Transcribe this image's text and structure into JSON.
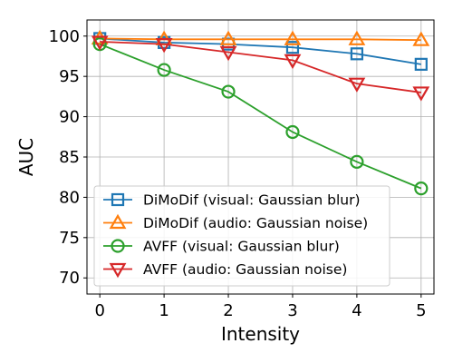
{
  "chart_data": {
    "type": "line",
    "title": "",
    "xlabel": "Intensity",
    "ylabel": "AUC",
    "x": [
      0,
      1,
      2,
      3,
      4,
      5
    ],
    "xlim": [
      -0.2,
      5.2
    ],
    "ylim": [
      68,
      102
    ],
    "xticks": [
      "0",
      "1",
      "2",
      "3",
      "4",
      "5"
    ],
    "yticks": [
      "70",
      "75",
      "80",
      "85",
      "90",
      "95",
      "100"
    ],
    "grid": true,
    "legend_position": "lower-left",
    "series": [
      {
        "name": "DiMoDif (visual: Gaussian blur)",
        "values": [
          99.7,
          99.2,
          99.0,
          98.6,
          97.8,
          96.5
        ],
        "color": "#1f77b4",
        "marker": "square"
      },
      {
        "name": "DiMoDif (audio: Gaussian noise)",
        "values": [
          99.7,
          99.6,
          99.6,
          99.6,
          99.6,
          99.5
        ],
        "color": "#ff7f0e",
        "marker": "triangle-up"
      },
      {
        "name": "AVFF (visual: Gaussian blur)",
        "values": [
          99.0,
          95.8,
          93.1,
          88.1,
          84.4,
          81.1
        ],
        "color": "#2ca02c",
        "marker": "circle"
      },
      {
        "name": "AVFF (audio: Gaussian noise)",
        "values": [
          99.3,
          99.0,
          98.0,
          97.0,
          94.1,
          93.0
        ],
        "color": "#d62728",
        "marker": "triangle-down"
      }
    ]
  }
}
